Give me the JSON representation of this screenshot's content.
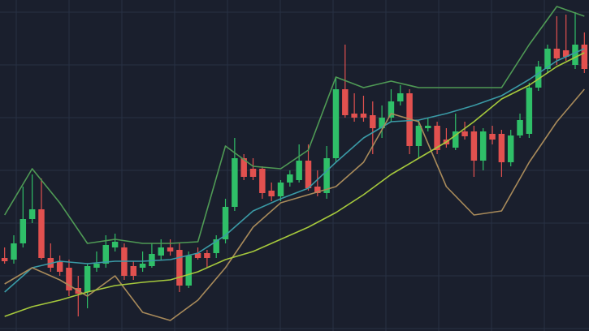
{
  "chart_data": {
    "type": "candlestick",
    "grid": true,
    "background": "#1a1f2d",
    "grid_color": "#283043",
    "up_color": "#2fbf68",
    "down_color": "#e2514f",
    "xlim": [
      -0.5,
      63.5
    ],
    "ylim": [
      0,
      408
    ],
    "open": [
      90,
      88,
      108,
      138,
      150,
      90,
      86,
      78,
      53,
      48,
      78,
      83,
      103,
      103,
      80,
      78,
      80,
      93,
      103,
      100,
      56,
      96,
      96,
      96,
      113,
      153,
      213,
      200,
      200,
      173,
      166,
      183,
      186,
      210,
      178,
      170,
      213,
      298,
      268,
      268,
      266,
      250,
      263,
      283,
      293,
      228,
      250,
      253,
      236,
      226,
      246,
      246,
      210,
      243,
      243,
      208,
      241,
      243,
      300,
      323,
      348,
      346,
      328,
      353
    ],
    "high": [
      103,
      118,
      178,
      193,
      188,
      108,
      93,
      88,
      68,
      83,
      98,
      118,
      120,
      108,
      86,
      98,
      108,
      113,
      113,
      108,
      98,
      103,
      100,
      118,
      163,
      238,
      218,
      213,
      203,
      183,
      186,
      198,
      230,
      230,
      198,
      228,
      313,
      353,
      293,
      290,
      283,
      278,
      298,
      303,
      298,
      260,
      263,
      258,
      250,
      268,
      258,
      253,
      250,
      253,
      248,
      248,
      268,
      306,
      333,
      353,
      388,
      390,
      393,
      368
    ],
    "low": [
      83,
      83,
      103,
      133,
      88,
      73,
      68,
      43,
      18,
      28,
      73,
      78,
      98,
      63,
      63,
      73,
      78,
      88,
      93,
      48,
      53,
      88,
      78,
      90,
      108,
      148,
      186,
      186,
      163,
      160,
      160,
      178,
      183,
      173,
      166,
      163,
      208,
      263,
      258,
      258,
      218,
      238,
      258,
      278,
      218,
      213,
      246,
      218,
      226,
      223,
      236,
      190,
      198,
      230,
      190,
      203,
      238,
      238,
      296,
      318,
      328,
      333,
      323,
      318
    ],
    "close": [
      86,
      108,
      138,
      150,
      90,
      78,
      73,
      50,
      46,
      80,
      83,
      106,
      110,
      68,
      68,
      83,
      95,
      103,
      98,
      56,
      93,
      90,
      90,
      113,
      153,
      213,
      190,
      190,
      170,
      166,
      183,
      193,
      210,
      176,
      170,
      213,
      298,
      266,
      263,
      263,
      250,
      263,
      283,
      293,
      228,
      253,
      253,
      223,
      230,
      246,
      240,
      210,
      246,
      236,
      208,
      241,
      260,
      300,
      326,
      348,
      336,
      338,
      353,
      323
    ],
    "lines": [
      {
        "color": "#4f9a55",
        "x": [
          0,
          3,
          6,
          9,
          12,
          15,
          18,
          21,
          24,
          27,
          30,
          33,
          36,
          39,
          42,
          45,
          48,
          51,
          54,
          57,
          60,
          63
        ],
        "values": [
          143,
          200,
          158,
          108,
          113,
          108,
          108,
          110,
          228,
          203,
          200,
          223,
          313,
          300,
          308,
          300,
          300,
          300,
          300,
          353,
          400,
          388
        ]
      },
      {
        "color": "#3a9aa6",
        "x": [
          0,
          3,
          6,
          9,
          12,
          15,
          18,
          21,
          24,
          27,
          30,
          33,
          36,
          39,
          42,
          45,
          48,
          51,
          54,
          57,
          60,
          63
        ],
        "values": [
          48,
          78,
          86,
          83,
          86,
          86,
          88,
          96,
          118,
          148,
          163,
          176,
          208,
          238,
          258,
          260,
          268,
          278,
          290,
          310,
          333,
          348
        ]
      },
      {
        "color": "#a88a5a",
        "x": [
          0,
          3,
          6,
          9,
          12,
          15,
          18,
          21,
          24,
          27,
          30,
          33,
          36,
          39,
          42,
          45,
          48,
          51,
          54,
          57,
          60,
          63
        ],
        "values": [
          58,
          78,
          63,
          43,
          68,
          23,
          13,
          38,
          78,
          128,
          158,
          168,
          178,
          208,
          268,
          258,
          178,
          143,
          148,
          208,
          258,
          298
        ]
      },
      {
        "color": "#a6c93c",
        "x": [
          0,
          3,
          6,
          9,
          12,
          15,
          18,
          21,
          24,
          27,
          30,
          33,
          36,
          39,
          42,
          45,
          48,
          51,
          54,
          57,
          60,
          63
        ],
        "values": [
          18,
          30,
          38,
          48,
          56,
          60,
          63,
          73,
          88,
          98,
          113,
          128,
          146,
          168,
          193,
          213,
          233,
          258,
          286,
          303,
          326,
          343
        ]
      }
    ]
  }
}
